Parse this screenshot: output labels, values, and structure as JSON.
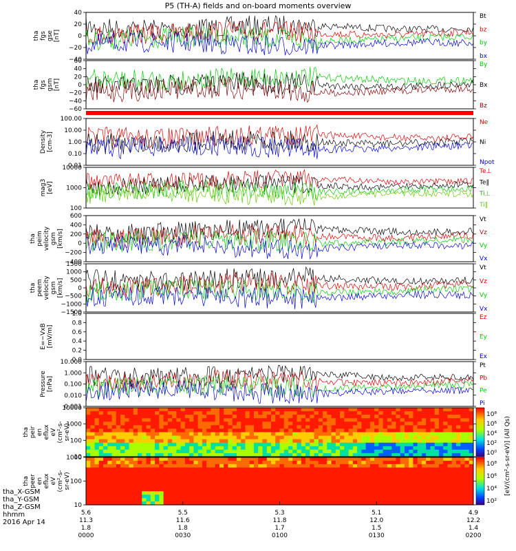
{
  "title": "P5 (TH-A) fields and on-board moments overview",
  "chart_data": {
    "type": "line",
    "x_ticks": {
      "hhmm": [
        "0000",
        "0030",
        "0100",
        "0130",
        "0200"
      ],
      "tha_X_GSM": [
        "5.6",
        "5.5",
        "5.3",
        "5.1",
        "4.9"
      ],
      "tha_Y_GSM": [
        "11.3",
        "11.6",
        "11.8",
        "12.0",
        "12.2"
      ],
      "tha_Z_GSM": [
        "1.8",
        "1.8",
        "1.7",
        "1.5",
        "1.4"
      ]
    },
    "ephem_labels": [
      "tha_X-GSM",
      "tha_Y-GSM",
      "tha_Z-GSM",
      "hhmm",
      "2016 Apr 14"
    ],
    "panels": [
      {
        "id": "fgs_gse",
        "ylabel": [
          "tha",
          "fgs",
          "gse",
          "[nT]"
        ],
        "ticks": [
          "40",
          "20",
          "0",
          "−20",
          "−40"
        ],
        "legend": [
          {
            "name": "Bt",
            "color": "#000000"
          },
          {
            "name": "bz",
            "color": "#dd0000"
          },
          {
            "name": "by",
            "color": "#00cc00"
          },
          {
            "name": "bx",
            "color": "#0000dd"
          }
        ]
      },
      {
        "id": "fgs_gsm",
        "ylabel": [
          "tha",
          "fgs",
          "gsm",
          "[nT]"
        ],
        "ticks": [
          "60",
          "40",
          "20",
          "0",
          "−20",
          "−40",
          "−60"
        ],
        "legend": [
          {
            "name": "By",
            "color": "#00cc00"
          },
          {
            "name": "Bx",
            "color": "#000000"
          },
          {
            "name": "Bz",
            "color": "#880000"
          }
        ]
      },
      {
        "id": "density",
        "ylabel": [
          "Density",
          "[cm-3]"
        ],
        "ticks": [
          "100.00",
          "10.00",
          "1.00",
          "0.10",
          "0.01"
        ],
        "legend": [
          {
            "name": "Ne",
            "color": "#dd0000"
          },
          {
            "name": "Ni",
            "color": "#000000"
          },
          {
            "name": "Npot",
            "color": "#0000dd"
          }
        ]
      },
      {
        "id": "temp",
        "ylabel": [
          "mag3",
          "[eV]"
        ],
        "ticks": [
          "10000",
          "1000",
          "100"
        ],
        "legend": [
          {
            "name": "Te⊥",
            "color": "#dd0000"
          },
          {
            "name": "Te‖",
            "color": "#000000"
          },
          {
            "name": "Ti⊥",
            "color": "#00cc00"
          },
          {
            "name": "Ti‖",
            "color": "#66cc00"
          }
        ]
      },
      {
        "id": "peim_vel",
        "ylabel": [
          "tha",
          "peim",
          "velocity",
          "gsm",
          "[km/s]"
        ],
        "ticks": [
          "600",
          "400",
          "200",
          "0",
          "−200",
          "−400"
        ],
        "legend": [
          {
            "name": "Vt",
            "color": "#000000"
          },
          {
            "name": "Vz",
            "color": "#dd0000"
          },
          {
            "name": "Vy",
            "color": "#00cc00"
          },
          {
            "name": "Vx",
            "color": "#0000dd"
          }
        ]
      },
      {
        "id": "peem_vel",
        "ylabel": [
          "tha",
          "peem",
          "velocity",
          "gsm",
          "[km/s]"
        ],
        "ticks": [
          "1500",
          "1000",
          "500",
          "0",
          "−500",
          "−1000",
          "−1500"
        ],
        "legend": [
          {
            "name": "Vt",
            "color": "#000000"
          },
          {
            "name": "Vz",
            "color": "#dd0000"
          },
          {
            "name": "Vy",
            "color": "#00cc00"
          },
          {
            "name": "Vx",
            "color": "#0000dd"
          }
        ]
      },
      {
        "id": "efield",
        "ylabel": [
          "E=−VxB",
          "[mV/m]"
        ],
        "ticks": [
          "1.0",
          "0.8",
          "0.6",
          "0.4",
          "0.2",
          "0.0"
        ],
        "legend": [
          {
            "name": "Ez",
            "color": "#dd0000"
          },
          {
            "name": "Ey",
            "color": "#00cc00"
          },
          {
            "name": "Ex",
            "color": "#0000dd"
          }
        ]
      },
      {
        "id": "pressure",
        "ylabel": [
          "Pressure",
          "[nPa]"
        ],
        "ticks": [
          "10.000",
          "1.000",
          "0.100",
          "0.010",
          "0.001"
        ],
        "legend": [
          {
            "name": "Pt",
            "color": "#000000"
          },
          {
            "name": "Pb",
            "color": "#dd0000"
          },
          {
            "name": "Pe",
            "color": "#00cc00"
          },
          {
            "name": "Pi",
            "color": "#0000dd"
          }
        ]
      },
      {
        "id": "peir_spec",
        "ylabel": [
          "tha",
          "peir",
          "en",
          "eflux",
          "eV",
          "(cm²-s-",
          "sr-eV)"
        ],
        "ticks": [
          "10000",
          "1000",
          "100",
          "10"
        ]
      },
      {
        "id": "peer_spec",
        "ylabel": [
          "tha",
          "peer",
          "en",
          "eflux",
          "eV",
          "(cm²-s-",
          "sr-eV)"
        ],
        "ticks": [
          "1000",
          "100",
          "10"
        ]
      }
    ],
    "colorbar": {
      "label": "[eV/(cm²-s-sr-eV)] (All Qs)",
      "top_ticks": [
        "10⁸",
        "10⁶",
        "10⁴",
        "10²",
        "10⁰"
      ],
      "bottom_ticks": [
        "10⁸",
        "10⁶",
        "10⁴",
        "10²"
      ]
    }
  }
}
